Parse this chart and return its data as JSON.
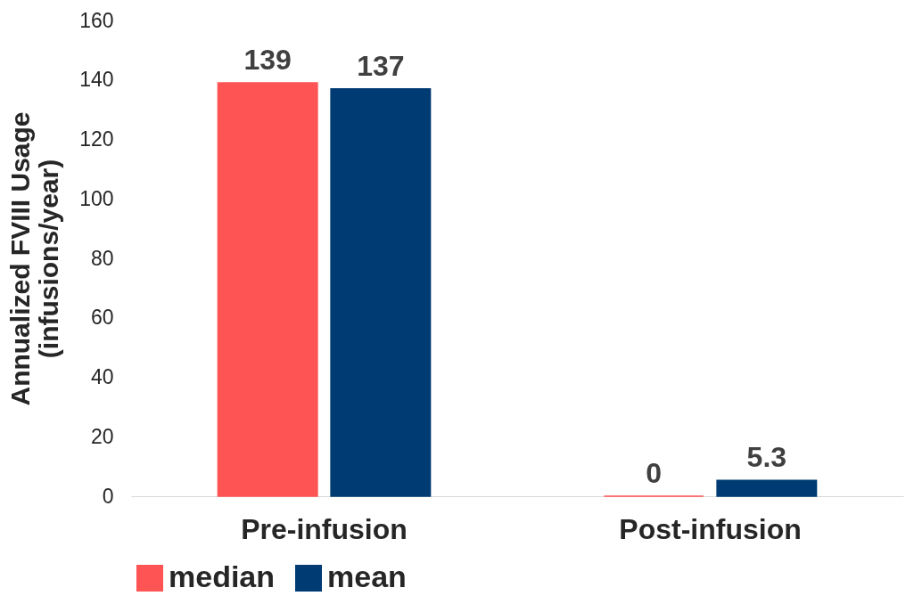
{
  "chart_data": {
    "type": "bar",
    "ylabel": "Annualized FVIII Usage\n(infusions/year)",
    "categories": [
      "Pre-infusion",
      "Post-infusion"
    ],
    "series": [
      {
        "name": "median",
        "color": "#fe5454",
        "values": [
          139,
          0
        ]
      },
      {
        "name": "mean",
        "color": "#003b73",
        "values": [
          137,
          5.3
        ]
      }
    ],
    "ylim": [
      0,
      160
    ],
    "yticks": [
      0,
      20,
      40,
      60,
      80,
      100,
      120,
      140,
      160
    ],
    "data_labels": true,
    "grid": false,
    "legend": "bottom"
  }
}
